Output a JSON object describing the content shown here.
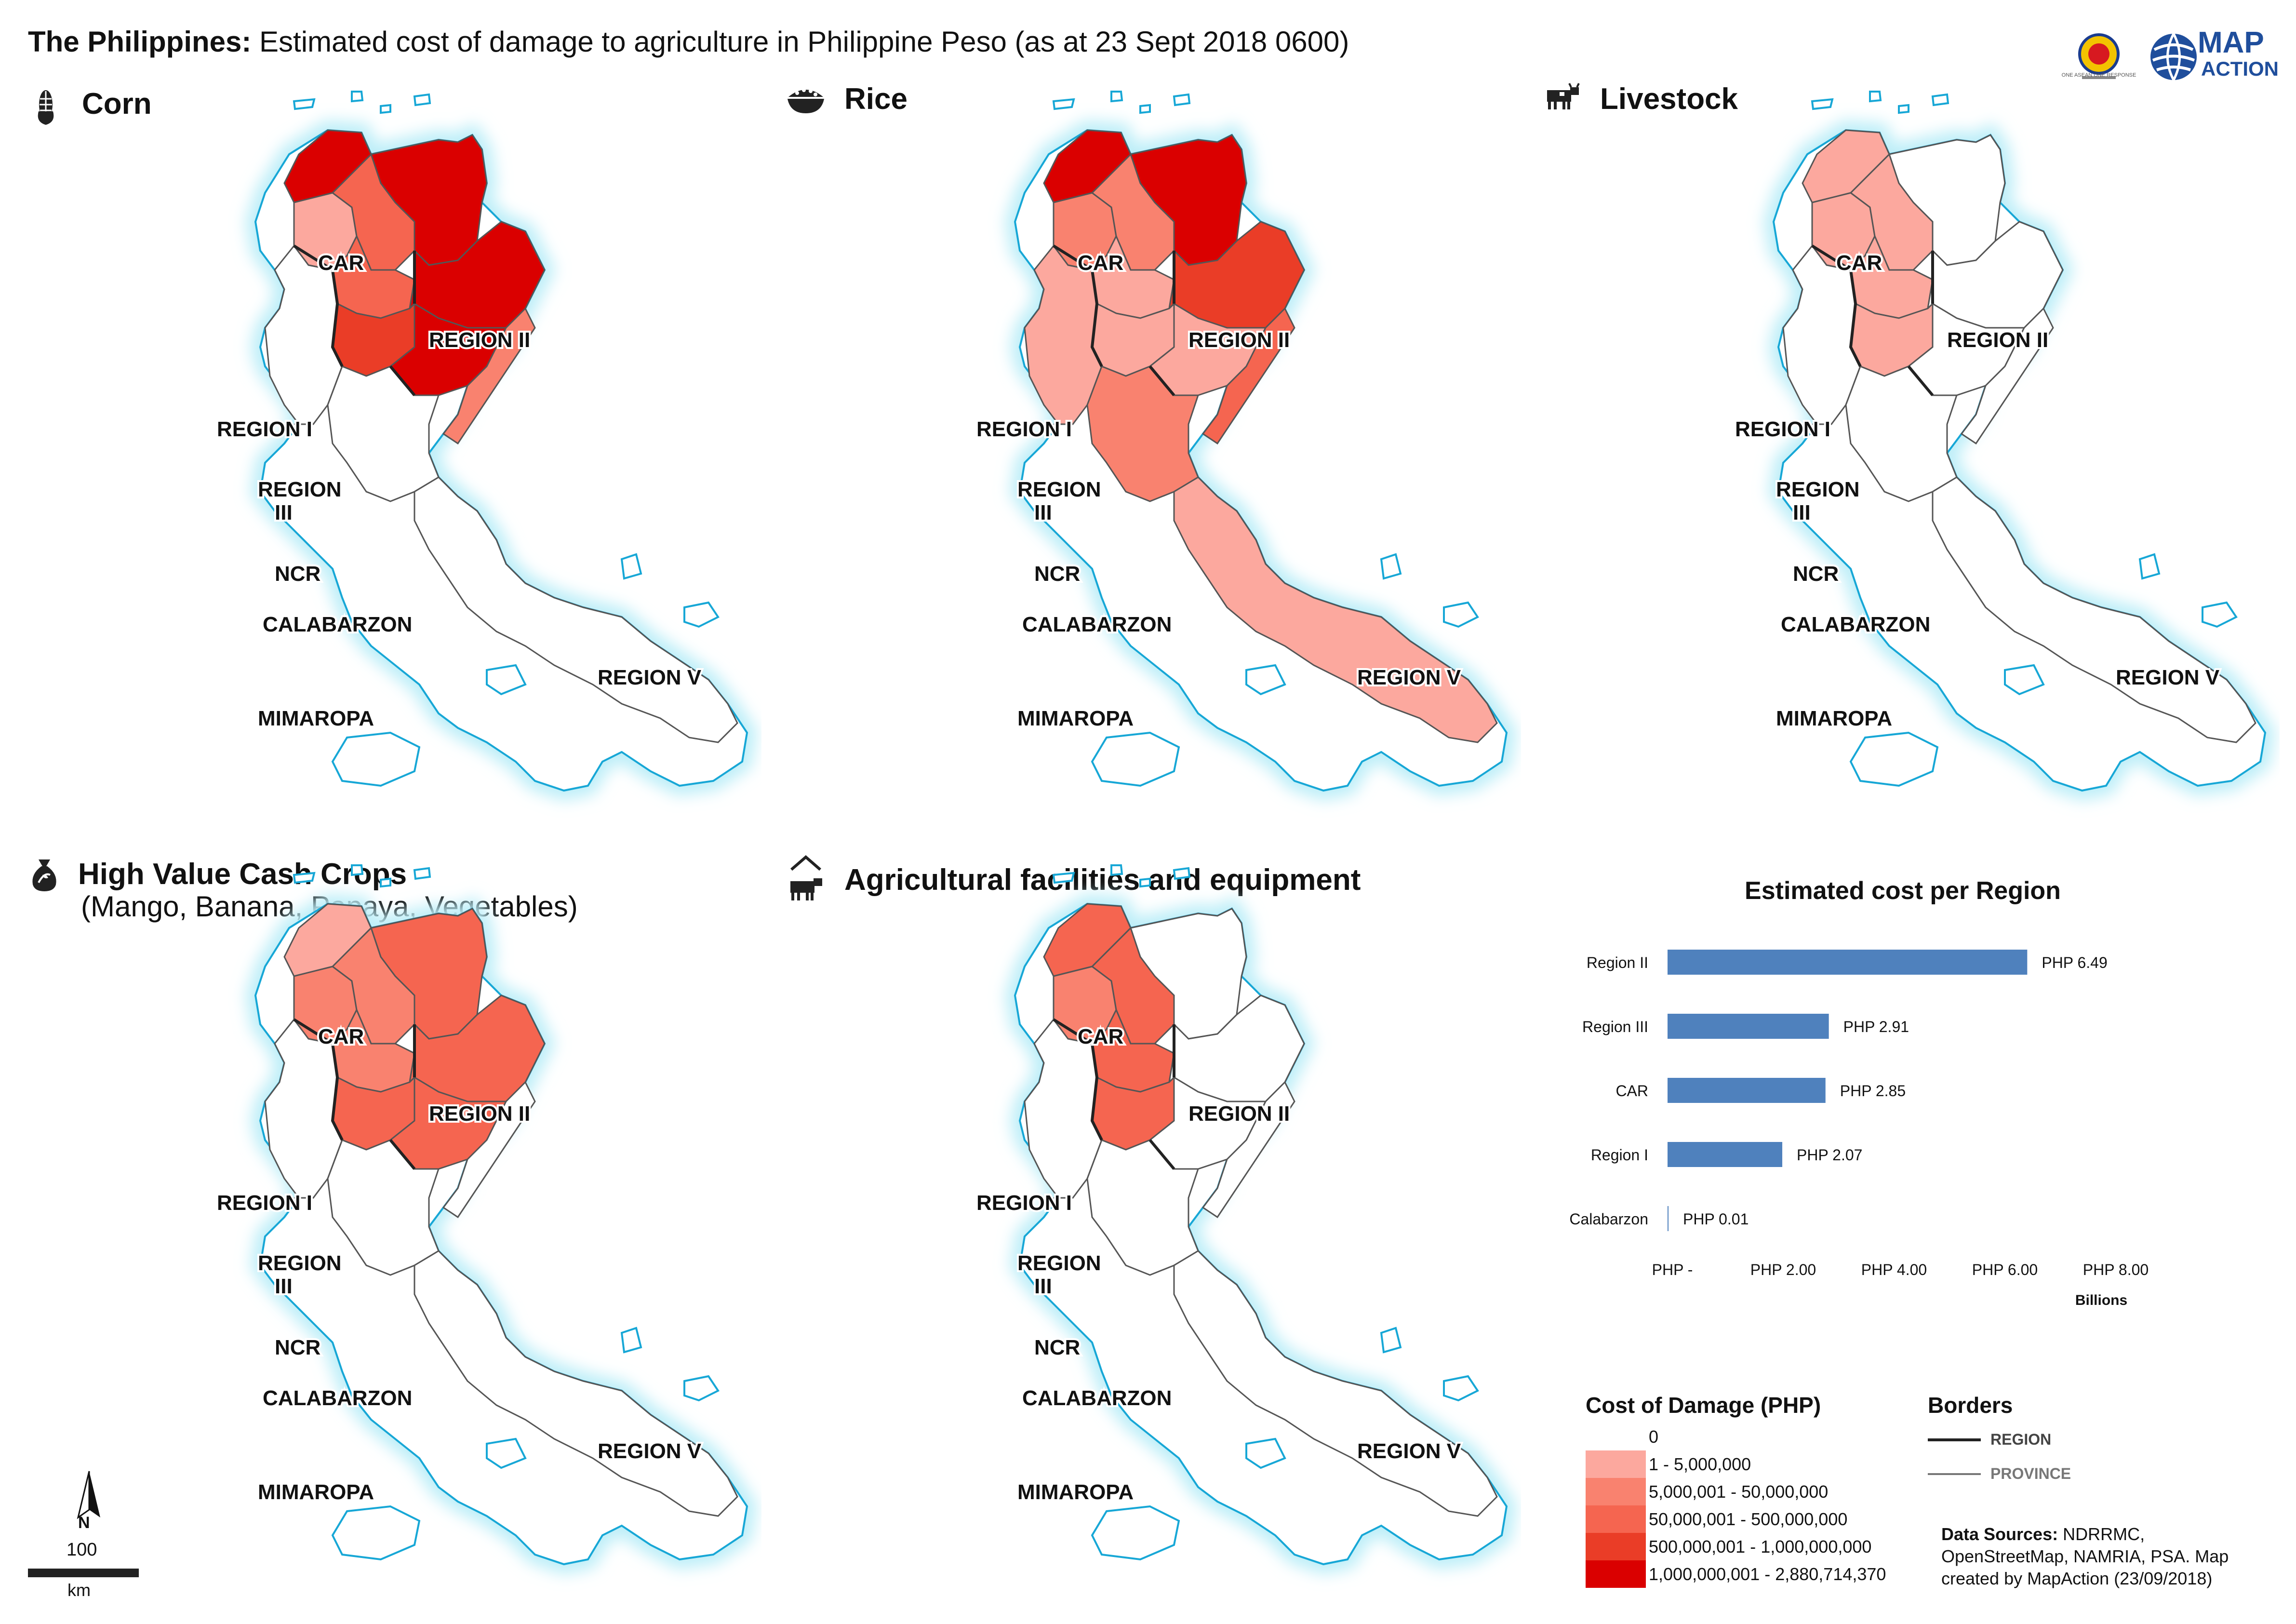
{
  "header": {
    "country": "The Philippines:",
    "subtitle": "Estimated cost of damage to agriculture in Philippine Peso (as at 23 Sept 2018 0600)"
  },
  "logos": {
    "mapaction_line1": "MAP",
    "mapaction_line2": "ACTION",
    "asean_caption": "ONE ASEAN ONE RESPONSE"
  },
  "colors": {
    "none": "#ffffff",
    "c1": "#fca89e",
    "c2": "#f9826f",
    "c3": "#f56550",
    "c4": "#ea3d27",
    "c5": "#da0000",
    "coast_glow": "#bdeef8",
    "coast_line": "#17a7d6",
    "bar": "#4f81bd"
  },
  "region_labels": {
    "car": "CAR",
    "region2": "REGION II",
    "region1": "REGION I",
    "region3a": "REGION",
    "region3b": "III",
    "ncr": "NCR",
    "calabarzon": "CALABARZON",
    "region5": "REGION V",
    "mimaropa": "MIMAROPA"
  },
  "panels": {
    "corn": {
      "title": "Corn",
      "icon": "corn-icon",
      "fills": {
        "north": "c5",
        "ne": "c5",
        "car_w": "c1",
        "car_c": "c3",
        "car_s": "c3",
        "r2_e": "c5",
        "r2_s": "c5",
        "r2_w": "c4",
        "coast": "c2",
        "r1": "none",
        "r3": "none",
        "south": "none"
      }
    },
    "rice": {
      "title": "Rice",
      "icon": "rice-bowl-icon",
      "fills": {
        "north": "c5",
        "ne": "c5",
        "car_w": "c2",
        "car_c": "c2",
        "car_s": "c1",
        "r2_e": "c4",
        "r2_s": "c1",
        "r2_w": "c1",
        "coast": "c3",
        "r1": "c1",
        "r3": "c2",
        "south": "c1"
      }
    },
    "livestock": {
      "title": "Livestock",
      "icon": "livestock-icon",
      "fills": {
        "north": "none",
        "ne": "c1",
        "car_w": "c1",
        "car_c": "c1",
        "car_s": "c1",
        "r2_e": "none",
        "r2_s": "none",
        "r2_w": "c1",
        "coast": "none",
        "r1": "none",
        "r3": "none",
        "south": "none"
      }
    },
    "hvcc": {
      "title": "High Value Cash Crops",
      "subtitle": "(Mango, Banana, Papaya, Vegetables)",
      "icon": "money-bag-icon",
      "fills": {
        "north": "c3",
        "ne": "c1",
        "car_w": "c2",
        "car_c": "c2",
        "car_s": "c2",
        "r2_e": "c3",
        "r2_s": "c3",
        "r2_w": "c3",
        "coast": "none",
        "r1": "none",
        "r3": "none",
        "south": "none"
      }
    },
    "facilities": {
      "title": "Agricultural facilities and equipment",
      "icon": "barn-icon",
      "fills": {
        "north": "none",
        "ne": "c3",
        "car_w": "c2",
        "car_c": "c3",
        "car_s": "c3",
        "r2_e": "none",
        "r2_s": "none",
        "r2_w": "c3",
        "coast": "none",
        "r1": "none",
        "r3": "none",
        "south": "none"
      }
    }
  },
  "chart_data": {
    "type": "bar",
    "orientation": "horizontal",
    "title": "Estimated cost per Region",
    "categories": [
      "Region II",
      "Region III",
      "CAR",
      "Region I",
      "Calabarzon"
    ],
    "values": [
      6.49,
      2.91,
      2.85,
      2.07,
      0.01
    ],
    "value_labels": [
      "PHP 6.49",
      "PHP 2.91",
      "PHP 2.85",
      "PHP 2.07",
      "PHP 0.01"
    ],
    "xticks": [
      0,
      2,
      4,
      6,
      8
    ],
    "xtick_labels": [
      "PHP -",
      "PHP 2.00",
      "PHP 4.00",
      "PHP 6.00",
      "PHP 8.00"
    ],
    "xlabel": "Billions",
    "xlim": [
      0,
      8
    ],
    "grid": false
  },
  "legend": {
    "title": "Cost of Damage (PHP)",
    "items": [
      {
        "label": "0",
        "color": "#ffffff"
      },
      {
        "label": "1 - 5,000,000",
        "color": "#fca89e"
      },
      {
        "label": "5,000,001 - 50,000,000",
        "color": "#f9826f"
      },
      {
        "label": "50,000,001 - 500,000,000",
        "color": "#f56550"
      },
      {
        "label": "500,000,001 - 1,000,000,000",
        "color": "#ea3d27"
      },
      {
        "label": "1,000,000,001 - 2,880,714,370",
        "color": "#da0000"
      }
    ]
  },
  "borders": {
    "title": "Borders",
    "region": "REGION",
    "province": "PROVINCE"
  },
  "scale": {
    "north": "N",
    "value": "100",
    "unit": "km"
  },
  "sources": {
    "label": "Data Sources:",
    "text1": "NDRRMC,",
    "text2": "OpenStreetMap, NAMRIA, PSA. Map",
    "text3": "created by MapAction (23/09/2018)"
  }
}
